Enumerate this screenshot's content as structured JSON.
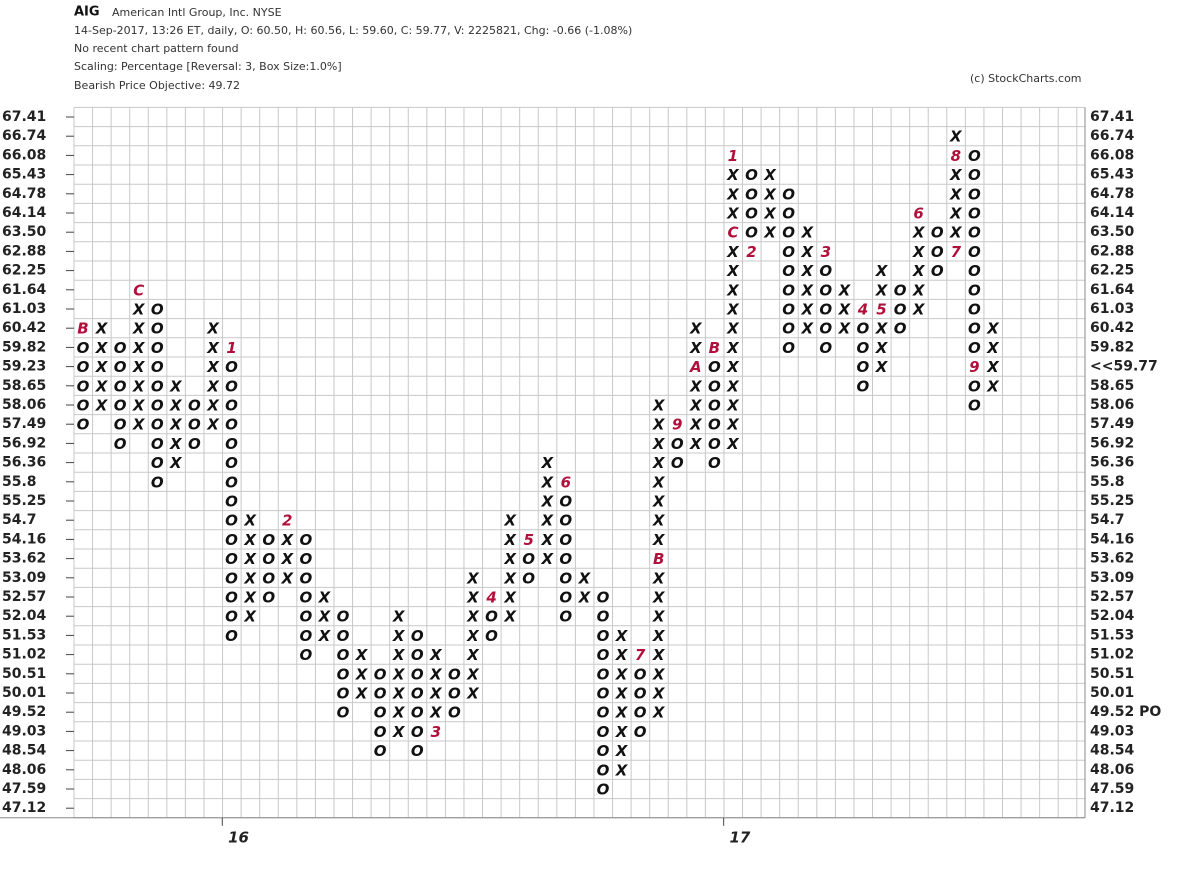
{
  "chart_data": {
    "type": "point-and-figure",
    "symbol": "AIG",
    "company": "American Intl Group, Inc.  NYSE",
    "quote_line": "14-Sep-2017, 13:26 ET, daily, O: 60.50, H: 60.56, L: 59.60, C: 59.77, V: 2225821, Chg: -0.66 (-1.08%)",
    "pattern_line": "No recent chart pattern found",
    "scaling_line": "Scaling: Percentage [Reversal: 3, Box Size:1.0%]",
    "objective_line": "Bearish Price Objective: 49.72",
    "credit": "(c) StockCharts.com",
    "levels": [
      67.41,
      66.74,
      66.08,
      65.43,
      64.78,
      64.14,
      {
        "value": 63.5,
        "label": "63.50"
      },
      62.88,
      62.25,
      61.64,
      61.03,
      60.42,
      59.82,
      59.23,
      58.65,
      58.06,
      57.49,
      56.92,
      56.36,
      55.8,
      55.25,
      54.7,
      54.16,
      53.62,
      53.09,
      52.57,
      52.04,
      51.53,
      51.02,
      50.51,
      50.01,
      49.52,
      49.03,
      48.54,
      48.06,
      47.59,
      47.12
    ],
    "current": {
      "value": 59.77,
      "label": "<<59.77"
    },
    "price_objective": {
      "value": 49.52,
      "label": "49.52 PO"
    },
    "box_color": "#111111",
    "marker_color": "#b0103a",
    "highlight_color": "#e8102a",
    "columns": [
      {
        "top": 60.42,
        "boxes": [
          "B",
          "O",
          "O",
          "O",
          "O",
          "O"
        ]
      },
      {
        "top": 60.42,
        "boxes": [
          "X",
          "X",
          "X",
          "X",
          "X"
        ]
      },
      {
        "top": 59.82,
        "boxes": [
          "O",
          "O",
          "O",
          "O",
          "O",
          "O"
        ]
      },
      {
        "top": 61.64,
        "boxes": [
          "C",
          "X",
          "X",
          "X",
          "X",
          "X",
          "X",
          "X"
        ]
      },
      {
        "top": 61.03,
        "boxes": [
          "O",
          "O",
          "O",
          "O",
          "O",
          "O",
          "O",
          "O",
          "O",
          "O"
        ]
      },
      {
        "top": 58.65,
        "boxes": [
          "X",
          "X",
          "X",
          "X",
          "X"
        ]
      },
      {
        "top": 58.06,
        "boxes": [
          "O",
          "O",
          "O"
        ]
      },
      {
        "top": 60.42,
        "boxes": [
          "X",
          "X",
          "X",
          "X",
          "X",
          "X"
        ]
      },
      {
        "top": 59.82,
        "year": "16",
        "boxes": [
          "1",
          "O",
          "O",
          "O",
          "O",
          "O",
          "O",
          "O",
          "O",
          "O",
          "O",
          "O",
          "O",
          "O",
          "O",
          "O"
        ]
      },
      {
        "top": 54.7,
        "boxes": [
          "X",
          "X",
          "X",
          "X",
          "X",
          "X"
        ]
      },
      {
        "top": 54.16,
        "boxes": [
          "O",
          "O",
          "O",
          "O"
        ]
      },
      {
        "top": 54.7,
        "boxes": [
          "2",
          "X",
          "X",
          "X"
        ]
      },
      {
        "top": 54.16,
        "boxes": [
          "O",
          "O",
          "O",
          "O",
          "O",
          "O",
          "O"
        ]
      },
      {
        "top": 52.57,
        "boxes": [
          "X",
          "X",
          "X"
        ]
      },
      {
        "top": 52.04,
        "boxes": [
          "O",
          "O",
          "O",
          "O",
          "O",
          "O"
        ]
      },
      {
        "top": 51.02,
        "boxes": [
          "X",
          "X",
          "X"
        ]
      },
      {
        "top": 50.51,
        "boxes": [
          "O",
          "O",
          "O",
          "O",
          "O"
        ]
      },
      {
        "top": 52.04,
        "boxes": [
          "X",
          "X",
          "X",
          "X",
          "X",
          "X",
          "X"
        ]
      },
      {
        "top": 51.53,
        "boxes": [
          "O",
          "O",
          "O",
          "O",
          "O",
          "O",
          "O"
        ]
      },
      {
        "top": 51.02,
        "boxes": [
          "X",
          "X",
          "X",
          "X",
          "3"
        ]
      },
      {
        "top": 50.51,
        "boxes": [
          "O",
          "O",
          "O"
        ]
      },
      {
        "top": 53.09,
        "boxes": [
          "X",
          "X",
          "X",
          "X",
          "X",
          "X",
          "X"
        ]
      },
      {
        "top": 52.57,
        "boxes": [
          "4",
          "O",
          "O"
        ]
      },
      {
        "top": 54.7,
        "boxes": [
          "X",
          "X",
          "X",
          "X",
          "X",
          "X"
        ]
      },
      {
        "top": 54.16,
        "boxes": [
          "5",
          "O",
          "O"
        ]
      },
      {
        "top": 56.36,
        "boxes": [
          "X",
          "X",
          "X",
          "X",
          "X",
          "X"
        ]
      },
      {
        "top": 55.8,
        "boxes": [
          "6",
          "O",
          "O",
          "O",
          "O",
          "O",
          "O",
          "O"
        ]
      },
      {
        "top": 53.09,
        "boxes": [
          "X",
          "X"
        ]
      },
      {
        "top": 52.57,
        "boxes": [
          "O",
          "O",
          "O",
          "O",
          "O",
          "O",
          "O",
          "O",
          "O",
          "O",
          "O"
        ]
      },
      {
        "top": 51.53,
        "boxes": [
          "X",
          "X",
          "X",
          "X",
          "X",
          "X",
          "X",
          "X"
        ]
      },
      {
        "top": 51.02,
        "boxes": [
          "7",
          "O",
          "O",
          "O",
          "O"
        ]
      },
      {
        "top": 58.06,
        "boxes": [
          "X",
          "X",
          "X",
          "X",
          "X",
          "X",
          "X",
          "X",
          "B",
          "X",
          "X",
          "X",
          "X",
          "X",
          "X",
          "X",
          "X"
        ]
      },
      {
        "top": 57.49,
        "boxes": [
          "9",
          "O",
          "O"
        ]
      },
      {
        "top": 60.42,
        "boxes": [
          "X",
          "X",
          "A",
          "X",
          "X",
          "X",
          "X"
        ]
      },
      {
        "top": 59.82,
        "boxes": [
          "B",
          "O",
          "O",
          "O",
          "O",
          "O",
          "O"
        ]
      },
      {
        "top": 66.08,
        "year": "17",
        "boxes": [
          "1",
          "X",
          "X",
          "X",
          "C",
          "X",
          "X",
          "X",
          "X",
          "X",
          "X",
          "X",
          "X",
          "X",
          "X",
          "X"
        ]
      },
      {
        "top": 65.43,
        "boxes": [
          "O",
          "O",
          "O",
          "O",
          "2"
        ]
      },
      {
        "top": 65.43,
        "boxes": [
          "X",
          "X",
          "X",
          "X"
        ]
      },
      {
        "top": 64.78,
        "boxes": [
          "O",
          "O",
          "O",
          "O",
          "O",
          "O",
          "O",
          "O",
          "O"
        ]
      },
      {
        "top": 63.5,
        "boxes": [
          "X",
          "X",
          "X",
          "X",
          "X",
          "X"
        ]
      },
      {
        "top": 62.88,
        "boxes": [
          "3",
          "O",
          "O",
          "O",
          "O",
          "O"
        ]
      },
      {
        "top": 61.64,
        "boxes": [
          "X",
          "X",
          "X"
        ]
      },
      {
        "top": 61.03,
        "boxes": [
          "4",
          "O",
          "O",
          "O",
          "O"
        ]
      },
      {
        "top": 62.25,
        "boxes": [
          "X",
          "X",
          "5",
          "X",
          "X",
          "X"
        ]
      },
      {
        "top": 61.64,
        "boxes": [
          "O",
          "O",
          "O"
        ]
      },
      {
        "top": 64.14,
        "boxes": [
          "6",
          "X",
          "X",
          "X",
          "X",
          "X"
        ]
      },
      {
        "top": 63.5,
        "boxes": [
          "O",
          "O",
          "O"
        ]
      },
      {
        "top": 66.74,
        "boxes": [
          "X",
          "8",
          "X",
          "X",
          "X",
          "X",
          "7"
        ]
      },
      {
        "top": 66.08,
        "boxes": [
          "O",
          "O",
          "O",
          "O",
          "O",
          "O",
          "O",
          "O",
          "O",
          "O",
          "O",
          "9",
          "O",
          "O"
        ]
      },
      {
        "top": 60.42,
        "boxes": [
          "X",
          "X",
          "X",
          "X"
        ]
      }
    ]
  }
}
